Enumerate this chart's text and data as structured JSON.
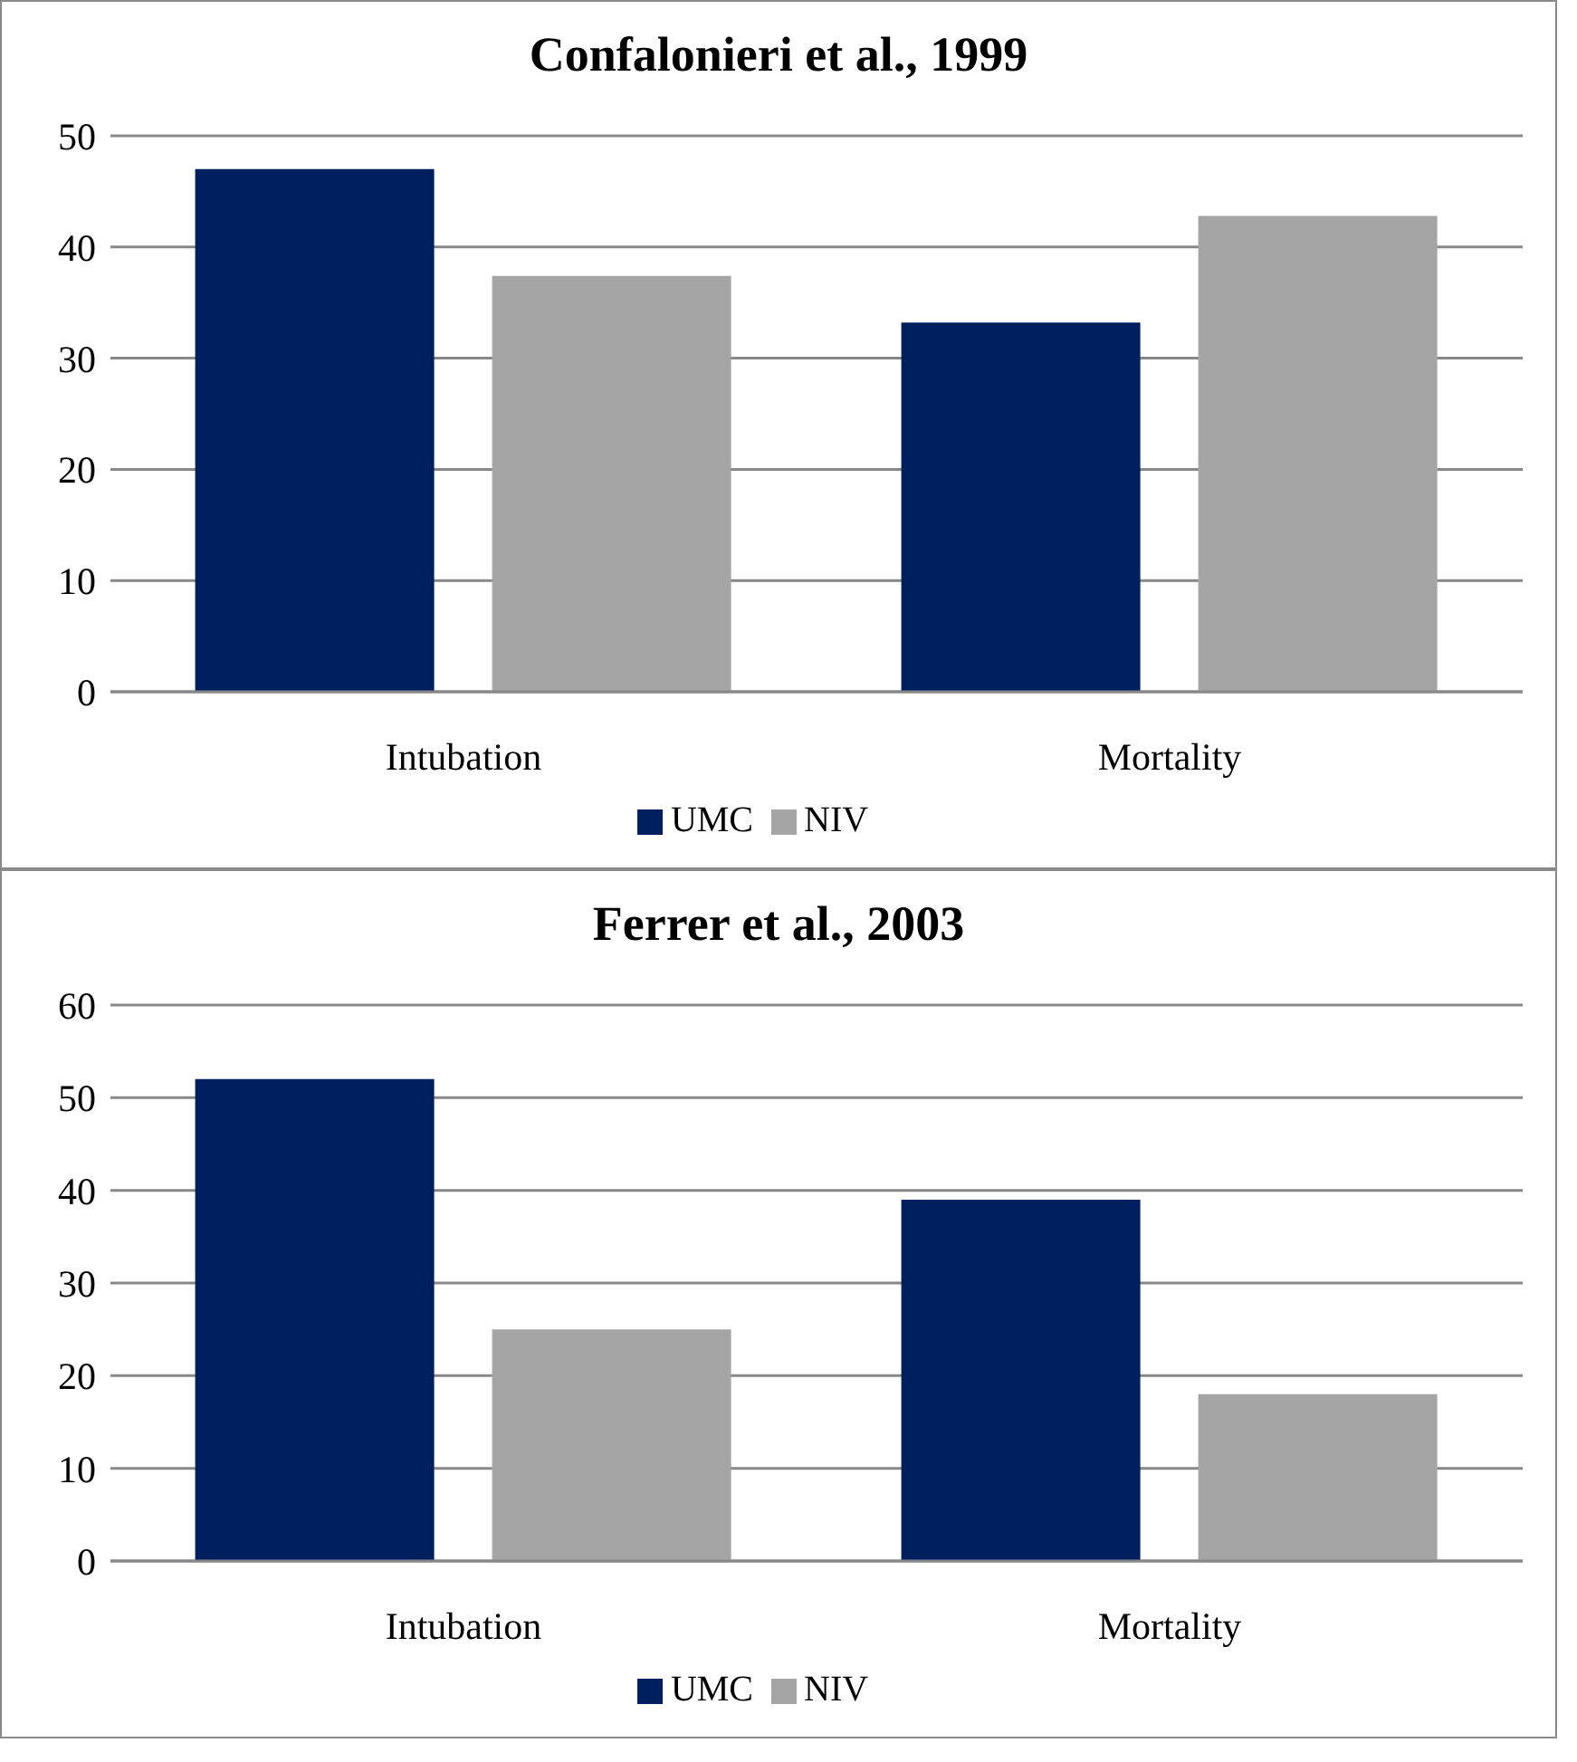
{
  "chart_data": [
    {
      "type": "bar",
      "title": "Confalonieri et al., 1999",
      "categories": [
        "Intubation",
        "Mortality"
      ],
      "series": [
        {
          "name": "UMC",
          "color": "#001f5f",
          "values": [
            47.0,
            33.2
          ]
        },
        {
          "name": "NIV",
          "color": "#a5a5a5",
          "values": [
            37.4,
            42.8
          ]
        }
      ],
      "ylim": [
        0,
        50
      ],
      "yticks": [
        0,
        10,
        20,
        30,
        40,
        50
      ],
      "grid": "y",
      "legend": "bottom"
    },
    {
      "type": "bar",
      "title": "Ferrer et al., 2003",
      "categories": [
        "Intubation",
        "Mortality"
      ],
      "series": [
        {
          "name": "UMC",
          "color": "#001f5f",
          "values": [
            52,
            39
          ]
        },
        {
          "name": "NIV",
          "color": "#a5a5a5",
          "values": [
            25,
            18
          ]
        }
      ],
      "ylim": [
        0,
        60
      ],
      "yticks": [
        0,
        10,
        20,
        30,
        40,
        50,
        60
      ],
      "grid": "y",
      "legend": "bottom"
    }
  ]
}
